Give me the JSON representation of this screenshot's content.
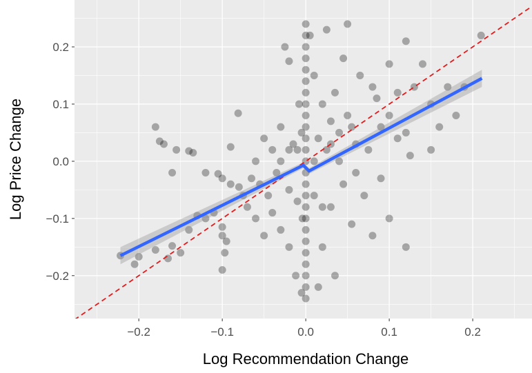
{
  "chart_data": {
    "type": "scatter",
    "x_label": "Log Recommendation Change",
    "y_label": "Log Price Change",
    "xlim": [
      -0.277,
      0.271
    ],
    "ylim": [
      -0.275,
      0.282
    ],
    "xticks": [
      {
        "value": -0.2,
        "label": "−0.2"
      },
      {
        "value": -0.1,
        "label": "−0.1"
      },
      {
        "value": 0,
        "label": "0.0"
      },
      0.1,
      0.2
    ],
    "yticks": [
      {
        "value": -0.2,
        "label": "−0.2"
      },
      {
        "value": -0.1,
        "label": "−0.1"
      },
      {
        "value": 0,
        "label": "0.0"
      },
      0.1,
      0.2
    ],
    "xminorticks": [
      -0.25,
      -0.15,
      -0.05,
      0.05,
      0.15,
      0.25
    ],
    "yminorticks": [
      -0.25,
      -0.15,
      -0.05,
      0.05,
      0.15,
      0.25
    ],
    "grid": true,
    "color": "#000000",
    "opacity": 0.3,
    "x": [
      -0.222,
      -0.2,
      -0.205,
      -0.18,
      -0.18,
      -0.16,
      -0.165,
      -0.17,
      -0.175,
      -0.16,
      -0.155,
      -0.14,
      -0.135,
      -0.15,
      -0.14,
      -0.13,
      -0.12,
      -0.11,
      -0.1,
      -0.1,
      -0.1,
      -0.097,
      -0.095,
      -0.081,
      -0.09,
      -0.12,
      -0.105,
      -0.1,
      -0.09,
      -0.08,
      -0.075,
      -0.07,
      -0.065,
      -0.06,
      -0.055,
      -0.05,
      -0.045,
      -0.04,
      -0.035,
      -0.03,
      -0.03,
      -0.025,
      -0.02,
      -0.02,
      -0.015,
      -0.012,
      -0.01,
      -0.008,
      -0.005,
      -0.005,
      -0.004,
      -0.06,
      -0.05,
      -0.04,
      -0.03,
      -0.02,
      -0.02,
      -0.01,
      0,
      0,
      0,
      0,
      0,
      0,
      0,
      0,
      0,
      0,
      0,
      0,
      0,
      0,
      0,
      0,
      0,
      0,
      0,
      0,
      0,
      0,
      0,
      0,
      0,
      0.005,
      0.01,
      0.01,
      0.015,
      0.015,
      0.02,
      0.02,
      0.025,
      0.025,
      0.03,
      0.03,
      0.035,
      0.035,
      0.04,
      0.04,
      0.045,
      0.05,
      0.05,
      0.055,
      0.06,
      0.065,
      0.07,
      0.075,
      0.08,
      0.085,
      0.09,
      0.09,
      0.1,
      0.1,
      0.11,
      0.11,
      0.12,
      0.12,
      0.125,
      0.13,
      0.14,
      0.15,
      0.15,
      0.16,
      0.17,
      0.18,
      0.19,
      0.21,
      0.02,
      0.01,
      0.03,
      0.06,
      0.1,
      0.12,
      0.08,
      0.045,
      0.055
    ],
    "values": [
      -0.165,
      -0.167,
      -0.18,
      0.06,
      -0.155,
      -0.148,
      -0.17,
      0.03,
      0.035,
      -0.02,
      0.02,
      0.018,
      0.015,
      -0.16,
      -0.12,
      -0.095,
      -0.1,
      -0.09,
      -0.19,
      -0.13,
      -0.115,
      -0.16,
      -0.14,
      0.084,
      0.025,
      -0.02,
      -0.022,
      -0.03,
      -0.04,
      -0.045,
      -0.06,
      -0.08,
      -0.03,
      0,
      -0.04,
      0.04,
      -0.06,
      -0.09,
      -0.02,
      0.06,
      -0.12,
      0.2,
      0.175,
      -0.15,
      0.03,
      -0.2,
      -0.07,
      0.1,
      -0.23,
      0.05,
      -0.1,
      -0.1,
      -0.13,
      0.02,
      0,
      0.02,
      -0.05,
      0.02,
      -0.24,
      -0.22,
      -0.2,
      -0.18,
      -0.16,
      -0.14,
      -0.12,
      -0.1,
      -0.08,
      -0.06,
      -0.04,
      -0.02,
      0,
      0.02,
      0.04,
      0.06,
      0.08,
      0.1,
      0.12,
      0.14,
      0.16,
      0.18,
      0.2,
      0.22,
      0.24,
      0.22,
      0.15,
      -0.06,
      0.04,
      -0.22,
      0.1,
      -0.15,
      0.02,
      0.23,
      -0.08,
      0.07,
      0.12,
      -0.2,
      0,
      0.05,
      -0.04,
      0.08,
      0.24,
      -0.11,
      0.03,
      0.15,
      -0.06,
      0.02,
      0.13,
      0.11,
      -0.03,
      0.06,
      0.17,
      -0.1,
      0.04,
      0.12,
      0.21,
      -0.15,
      0.01,
      0.13,
      0.17,
      0.1,
      0.02,
      0.06,
      0.13,
      0.08,
      0.13,
      0.22,
      -0.08,
      0,
      0.03,
      -0.02,
      0.08,
      0.05,
      -0.13,
      0.18,
      0.06
    ],
    "fit": {
      "color": "#3366ff",
      "band_color": "#999999",
      "x": [
        -0.222,
        -0.003,
        0.004,
        0.211
      ],
      "values": [
        -0.165,
        -0.007,
        -0.017,
        0.145
      ],
      "lower": [
        -0.18,
        -0.012,
        -0.022,
        0.13
      ],
      "upper": [
        -0.15,
        -0.002,
        -0.012,
        0.16
      ]
    },
    "reference_line": {
      "slope": 1,
      "intercept": 0,
      "color": "#e31a1c"
    }
  }
}
